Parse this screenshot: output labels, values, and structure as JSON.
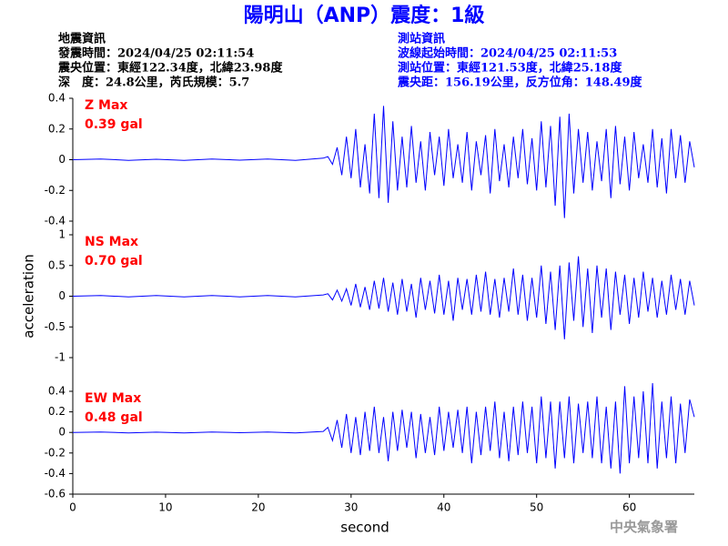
{
  "header": {
    "title": "陽明山（ANP）震度：1級",
    "left": [
      "地震資訊",
      "發震時間：2024/04/25 02:11:54",
      "震央位置：東經122.34度，北緯23.98度",
      "深　度：24.8公里，芮氏規模：5.7"
    ],
    "right": [
      "測站資訊",
      "波線起始時間：2024/04/25 02:11:53",
      "測站位置：東經121.53度，北緯25.18度",
      "震央距：156.19公里，反方位角：148.49度"
    ]
  },
  "footer": "中央氣象署",
  "chart_data": [
    {
      "type": "line",
      "annotations": [
        "Z Max",
        "0.39 gal"
      ],
      "color": "#0000ff",
      "xlim": [
        0,
        67
      ],
      "ylim": [
        -0.4,
        0.4
      ],
      "yticks": [
        -0.4,
        -0.2,
        0,
        0.2,
        0.4
      ],
      "x": [
        0,
        3,
        6,
        9,
        12,
        15,
        18,
        21,
        24,
        27,
        27.5,
        28,
        28.5,
        29,
        29.5,
        30,
        30.5,
        31,
        31.5,
        32,
        32.5,
        33,
        33.5,
        34,
        34.5,
        35,
        35.5,
        36,
        36.5,
        37,
        37.5,
        38,
        38.5,
        39,
        39.5,
        40,
        40.5,
        41,
        41.5,
        42,
        42.5,
        43,
        43.5,
        44,
        44.5,
        45,
        45.5,
        46,
        46.5,
        47,
        47.5,
        48,
        48.5,
        49,
        49.5,
        50,
        50.5,
        51,
        51.5,
        52,
        52.5,
        53,
        53.5,
        54,
        54.5,
        55,
        55.5,
        56,
        56.5,
        57,
        57.5,
        58,
        58.5,
        59,
        59.5,
        60,
        60.5,
        61,
        61.5,
        62,
        62.5,
        63,
        63.5,
        64,
        64.5,
        65,
        65.5,
        66,
        66.5,
        67
      ],
      "values": [
        0,
        0.005,
        -0.004,
        0.003,
        -0.005,
        0.004,
        -0.003,
        0.005,
        -0.004,
        0.01,
        0.02,
        -0.03,
        0.08,
        -0.1,
        0.15,
        -0.12,
        0.2,
        -0.18,
        0.1,
        -0.22,
        0.3,
        -0.25,
        0.35,
        -0.28,
        0.25,
        -0.2,
        0.15,
        -0.18,
        0.22,
        -0.15,
        0.12,
        -0.2,
        0.18,
        -0.1,
        0.15,
        -0.17,
        0.2,
        -0.12,
        0.1,
        -0.15,
        0.18,
        -0.2,
        0.12,
        -0.1,
        0.16,
        -0.22,
        0.2,
        -0.14,
        0.1,
        -0.18,
        0.15,
        -0.12,
        0.2,
        -0.16,
        0.14,
        -0.2,
        0.25,
        -0.18,
        0.22,
        -0.3,
        0.28,
        -0.38,
        0.3,
        -0.22,
        0.2,
        -0.15,
        0.18,
        -0.2,
        0.12,
        -0.14,
        0.2,
        -0.25,
        0.22,
        -0.16,
        0.15,
        -0.2,
        0.18,
        -0.12,
        0.1,
        -0.15,
        0.2,
        -0.18,
        0.14,
        -0.22,
        0.2,
        -0.12,
        0.16,
        -0.15,
        0.12,
        -0.05
      ]
    },
    {
      "type": "line",
      "annotations": [
        "NS Max",
        "0.70 gal"
      ],
      "color": "#0000ff",
      "ylabel": "acceleration",
      "xlim": [
        0,
        67
      ],
      "ylim": [
        -1,
        1
      ],
      "yticks": [
        -1,
        -0.5,
        0,
        0.5,
        1
      ],
      "x": [
        0,
        3,
        6,
        9,
        12,
        15,
        18,
        21,
        24,
        27,
        27.5,
        28,
        28.5,
        29,
        29.5,
        30,
        30.5,
        31,
        31.5,
        32,
        32.5,
        33,
        33.5,
        34,
        34.5,
        35,
        35.5,
        36,
        36.5,
        37,
        37.5,
        38,
        38.5,
        39,
        39.5,
        40,
        40.5,
        41,
        41.5,
        42,
        42.5,
        43,
        43.5,
        44,
        44.5,
        45,
        45.5,
        46,
        46.5,
        47,
        47.5,
        48,
        48.5,
        49,
        49.5,
        50,
        50.5,
        51,
        51.5,
        52,
        52.5,
        53,
        53.5,
        54,
        54.5,
        55,
        55.5,
        56,
        56.5,
        57,
        57.5,
        58,
        58.5,
        59,
        59.5,
        60,
        60.5,
        61,
        61.5,
        62,
        62.5,
        63,
        63.5,
        64,
        64.5,
        65,
        65.5,
        66,
        66.5,
        67
      ],
      "values": [
        0,
        0.01,
        -0.01,
        0.01,
        -0.01,
        0.01,
        -0.01,
        0.01,
        -0.01,
        0.02,
        0.04,
        -0.06,
        0.1,
        -0.08,
        0.12,
        -0.15,
        0.2,
        -0.18,
        0.15,
        -0.22,
        0.25,
        -0.2,
        0.3,
        -0.25,
        0.22,
        -0.3,
        0.28,
        -0.25,
        0.2,
        -0.35,
        0.3,
        -0.22,
        0.25,
        -0.28,
        0.35,
        -0.3,
        0.25,
        -0.4,
        0.3,
        -0.22,
        0.28,
        -0.3,
        0.35,
        -0.25,
        0.4,
        -0.3,
        0.28,
        -0.35,
        0.3,
        -0.25,
        0.45,
        -0.3,
        0.35,
        -0.4,
        0.3,
        -0.35,
        0.5,
        -0.45,
        0.4,
        -0.55,
        0.5,
        -0.7,
        0.55,
        -0.4,
        0.65,
        -0.5,
        0.45,
        -0.6,
        0.5,
        -0.35,
        0.45,
        -0.55,
        0.4,
        -0.3,
        0.35,
        -0.45,
        0.3,
        -0.35,
        0.4,
        -0.25,
        0.3,
        -0.35,
        0.25,
        -0.3,
        0.35,
        -0.22,
        0.28,
        -0.3,
        0.25,
        -0.15
      ]
    },
    {
      "type": "line",
      "annotations": [
        "EW Max",
        "0.48 gal"
      ],
      "color": "#0000ff",
      "xlabel": "second",
      "xlim": [
        0,
        67
      ],
      "ylim": [
        -0.6,
        0.4
      ],
      "yticks": [
        -0.6,
        -0.4,
        -0.2,
        0,
        0.2,
        0.4
      ],
      "xticks": [
        0,
        10,
        20,
        30,
        40,
        50,
        60
      ],
      "x": [
        0,
        3,
        6,
        9,
        12,
        15,
        18,
        21,
        24,
        27,
        27.5,
        28,
        28.5,
        29,
        29.5,
        30,
        30.5,
        31,
        31.5,
        32,
        32.5,
        33,
        33.5,
        34,
        34.5,
        35,
        35.5,
        36,
        36.5,
        37,
        37.5,
        38,
        38.5,
        39,
        39.5,
        40,
        40.5,
        41,
        41.5,
        42,
        42.5,
        43,
        43.5,
        44,
        44.5,
        45,
        45.5,
        46,
        46.5,
        47,
        47.5,
        48,
        48.5,
        49,
        49.5,
        50,
        50.5,
        51,
        51.5,
        52,
        52.5,
        53,
        53.5,
        54,
        54.5,
        55,
        55.5,
        56,
        56.5,
        57,
        57.5,
        58,
        58.5,
        59,
        59.5,
        60,
        60.5,
        61,
        61.5,
        62,
        62.5,
        63,
        63.5,
        64,
        64.5,
        65,
        65.5,
        66,
        66.5,
        67
      ],
      "values": [
        0,
        0.004,
        -0.004,
        0.003,
        -0.004,
        0.004,
        -0.003,
        0.004,
        -0.004,
        0.01,
        0.05,
        -0.08,
        0.12,
        -0.15,
        0.18,
        -0.2,
        0.15,
        -0.22,
        0.2,
        -0.18,
        0.25,
        -0.2,
        0.15,
        -0.28,
        0.2,
        -0.18,
        0.22,
        -0.15,
        0.2,
        -0.25,
        0.18,
        -0.2,
        0.15,
        -0.22,
        0.25,
        -0.18,
        0.2,
        -0.15,
        0.22,
        -0.2,
        0.25,
        -0.3,
        0.2,
        -0.22,
        0.25,
        -0.18,
        0.3,
        -0.25,
        0.2,
        -0.28,
        0.25,
        -0.22,
        0.3,
        -0.2,
        0.25,
        -0.3,
        0.35,
        -0.25,
        0.3,
        -0.35,
        0.3,
        -0.25,
        0.35,
        -0.3,
        0.28,
        -0.2,
        0.3,
        -0.25,
        0.35,
        -0.3,
        0.25,
        -0.35,
        0.3,
        -0.4,
        0.45,
        -0.3,
        0.35,
        -0.25,
        0.4,
        -0.3,
        0.48,
        -0.35,
        0.3,
        -0.25,
        0.35,
        -0.3,
        0.28,
        -0.2,
        0.32,
        0.15
      ]
    }
  ]
}
